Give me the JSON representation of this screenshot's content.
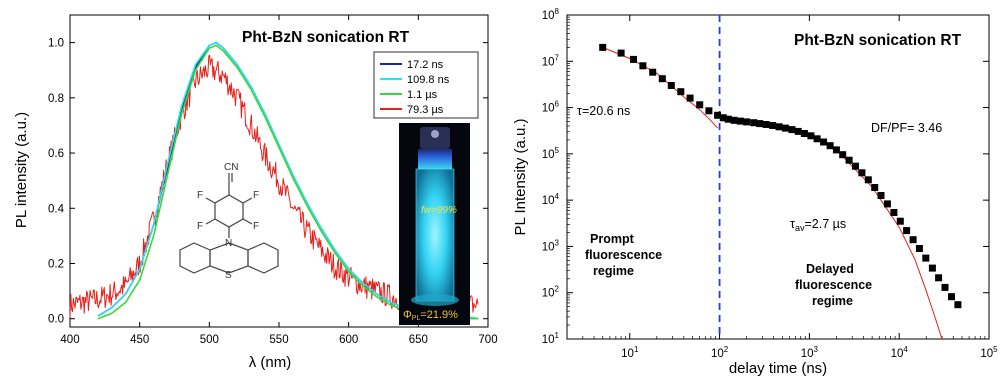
{
  "chart_data": [
    {
      "type": "line",
      "title": "Pht-BzN sonication RT",
      "xlabel": "λ (nm)",
      "ylabel": "PL intensity (a.u.)",
      "xlim": [
        400,
        700
      ],
      "ylim": [
        -0.03,
        1.1
      ],
      "xticks": [
        400,
        450,
        500,
        550,
        600,
        650,
        700
      ],
      "yticks": [
        0.0,
        0.2,
        0.4,
        0.6,
        0.8,
        1.0
      ],
      "xtick_labels": [
        "400",
        "450",
        "500",
        "550",
        "600",
        "650",
        "700"
      ],
      "ytick_labels": [
        "0.0",
        "0.2",
        "0.4",
        "0.6",
        "0.8",
        "1.0"
      ],
      "legend_position": "top-right",
      "series": [
        {
          "name": "17.2 ns",
          "color": "#1a22b0",
          "x": [
            420,
            430,
            440,
            450,
            460,
            470,
            480,
            490,
            500,
            505,
            510,
            520,
            530,
            540,
            550,
            560,
            570,
            580,
            590,
            600,
            610,
            620,
            630,
            640,
            650,
            660,
            670,
            680,
            693
          ],
          "y": [
            0.01,
            0.04,
            0.09,
            0.18,
            0.34,
            0.55,
            0.76,
            0.91,
            0.99,
            1.0,
            0.98,
            0.92,
            0.84,
            0.74,
            0.63,
            0.52,
            0.42,
            0.33,
            0.25,
            0.18,
            0.13,
            0.09,
            0.06,
            0.04,
            0.03,
            0.02,
            0.01,
            0.01,
            0.0
          ]
        },
        {
          "name": "109.8 ns",
          "color": "#2fe0f0",
          "x": [
            420,
            430,
            440,
            450,
            460,
            470,
            480,
            490,
            500,
            505,
            510,
            520,
            530,
            540,
            550,
            560,
            570,
            580,
            590,
            600,
            610,
            620,
            630,
            640,
            650,
            660,
            670,
            680,
            693
          ],
          "y": [
            0.01,
            0.04,
            0.09,
            0.18,
            0.34,
            0.56,
            0.77,
            0.92,
            0.99,
            1.0,
            0.98,
            0.92,
            0.84,
            0.74,
            0.63,
            0.52,
            0.42,
            0.33,
            0.25,
            0.18,
            0.13,
            0.09,
            0.06,
            0.04,
            0.03,
            0.02,
            0.01,
            0.01,
            0.0
          ]
        },
        {
          "name": "1.1 µs",
          "color": "#39d93a",
          "x": [
            420,
            430,
            440,
            450,
            460,
            470,
            480,
            490,
            500,
            505,
            510,
            520,
            530,
            540,
            550,
            560,
            570,
            580,
            590,
            600,
            610,
            620,
            630,
            640,
            650,
            660,
            670,
            680,
            693
          ],
          "y": [
            0.0,
            0.02,
            0.06,
            0.14,
            0.3,
            0.52,
            0.74,
            0.9,
            0.98,
            0.99,
            0.97,
            0.91,
            0.83,
            0.73,
            0.62,
            0.51,
            0.41,
            0.32,
            0.24,
            0.17,
            0.12,
            0.08,
            0.05,
            0.03,
            0.02,
            0.01,
            0.0,
            0.0,
            0.0
          ]
        },
        {
          "name": "79.3 µs",
          "color": "#e8201c",
          "x": [
            400,
            410,
            420,
            430,
            440,
            450,
            460,
            470,
            480,
            490,
            500,
            510,
            520,
            530,
            540,
            550,
            560,
            570,
            580,
            590,
            600,
            610,
            620,
            630,
            640,
            650,
            660,
            670,
            680,
            693
          ],
          "y": [
            0.05,
            0.06,
            0.07,
            0.09,
            0.12,
            0.2,
            0.36,
            0.56,
            0.74,
            0.86,
            0.91,
            0.88,
            0.8,
            0.7,
            0.59,
            0.5,
            0.4,
            0.32,
            0.25,
            0.19,
            0.15,
            0.12,
            0.1,
            0.08,
            0.07,
            0.06,
            0.05,
            0.05,
            0.05,
            0.05
          ]
        }
      ]
    },
    {
      "type": "scatter",
      "title": "Pht-BzN sonication RT",
      "xlabel": "delay time (ns)",
      "ylabel": "PL Intensity (a.u.)",
      "xscale": "log",
      "yscale": "log",
      "xlim": [
        2,
        100000
      ],
      "ylim": [
        10,
        100000000
      ],
      "xticks": [
        10,
        100,
        1000,
        10000,
        100000
      ],
      "yticks": [
        10,
        100,
        1000,
        10000,
        100000,
        1000000,
        10000000,
        100000000
      ],
      "xtick_labels": [
        {
          "base": "10",
          "exp": "1"
        },
        {
          "base": "10",
          "exp": "2"
        },
        {
          "base": "10",
          "exp": "3"
        },
        {
          "base": "10",
          "exp": "4"
        },
        {
          "base": "10",
          "exp": "5"
        }
      ],
      "ytick_labels": [
        {
          "base": "10",
          "exp": "1"
        },
        {
          "base": "10",
          "exp": "2"
        },
        {
          "base": "10",
          "exp": "3"
        },
        {
          "base": "10",
          "exp": "4"
        },
        {
          "base": "10",
          "exp": "5"
        },
        {
          "base": "10",
          "exp": "6"
        },
        {
          "base": "10",
          "exp": "7"
        },
        {
          "base": "10",
          "exp": "8"
        }
      ],
      "vline_x": 100,
      "points": {
        "x": [
          5,
          8,
          11,
          14,
          18,
          23,
          29,
          37,
          47,
          60,
          76,
          95,
          110,
          125,
          145,
          170,
          200,
          240,
          280,
          330,
          390,
          460,
          540,
          640,
          750,
          880,
          1040,
          1220,
          1440,
          1700,
          2000,
          2350,
          2770,
          3260,
          3840,
          4530,
          5330,
          6280,
          7400,
          8720,
          10300,
          12100,
          14300,
          16800,
          19800,
          23400,
          27500,
          32400,
          38200,
          45000
        ],
        "y": [
          20000000,
          15000000,
          11000000,
          8000000,
          5800000,
          4200000,
          3000000,
          2200000,
          1600000,
          1150000,
          850000,
          680000,
          600000,
          560000,
          530000,
          510000,
          490000,
          470000,
          450000,
          430000,
          410000,
          385000,
          360000,
          335000,
          305000,
          275000,
          245000,
          212000,
          180000,
          150000,
          122000,
          96000,
          73000,
          54000,
          39000,
          27500,
          18800,
          12600,
          8300,
          5400,
          3500,
          2200,
          1400,
          900,
          560,
          340,
          210,
          130,
          82,
          55
        ]
      },
      "fits": [
        {
          "x": [
            5,
            10,
            20,
            40,
            60,
            80,
            95
          ],
          "y": [
            20000000,
            11500000,
            5500000,
            1700000,
            900000,
            520000,
            360000
          ]
        },
        {
          "x": [
            100,
            200,
            500,
            1000,
            2000,
            5000,
            10000,
            15000,
            20000,
            25000,
            30000
          ],
          "y": [
            580000,
            490000,
            370000,
            250000,
            122000,
            19000,
            2600,
            520,
            110,
            30,
            10
          ]
        }
      ],
      "annotations": [
        {
          "text": "τ=20.6 ns"
        },
        {
          "text": "DF/PF= 3.46"
        }
      ],
      "tau_av": {
        "symbol": "τ",
        "sub": "av",
        "rest": "=2.7 µs"
      },
      "prompt_label": [
        "Prompt",
        "fluorescence",
        "regime"
      ],
      "delayed_label": [
        "Delayed",
        "fluorescence",
        "regime"
      ]
    }
  ],
  "molecule": {
    "cn_label": "CN",
    "f_labels": [
      "F",
      "F",
      "F",
      "F"
    ],
    "n_label": "N",
    "s_label": "S"
  },
  "vial": {
    "fw_label": "fw=99%",
    "phi_symbol": "Φ",
    "phi_sub": "PL",
    "phi_value": "=21.9%"
  }
}
